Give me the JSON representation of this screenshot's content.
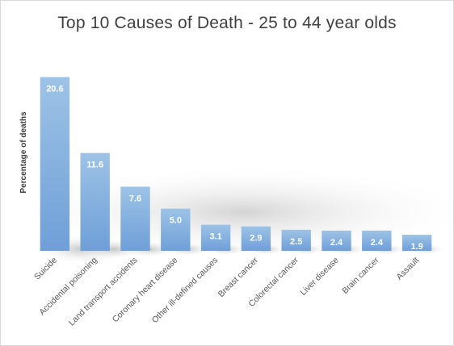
{
  "chart_data": {
    "type": "bar",
    "title": "Top 10 Causes of Death - 25 to 44 year olds",
    "xlabel": "",
    "ylabel": "Percentage of deaths",
    "categories": [
      "Suicide",
      "Accidental poisoning",
      "Land transport accidents",
      "Coronary heart disease",
      "Other ill-defined causes",
      "Breast cancer",
      "Colorectal cancer",
      "Liver disease",
      "Brain cancer",
      "Assault"
    ],
    "values": [
      20.6,
      11.6,
      7.6,
      5.0,
      3.1,
      2.9,
      2.5,
      2.4,
      2.4,
      1.9
    ],
    "value_labels": [
      "20.6",
      "11.6",
      "7.6",
      "5.0",
      "3.1",
      "2.9",
      "2.5",
      "2.4",
      "2.4",
      "1.9"
    ],
    "ylim": [
      0,
      22
    ],
    "grid": false,
    "legend": "none",
    "colors": {
      "bar_top": "#9dc3e6",
      "bar_bottom": "#6f9fd8",
      "label": "#ffffff"
    }
  }
}
